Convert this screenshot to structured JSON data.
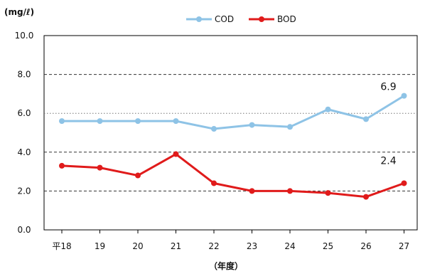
{
  "chart_data": {
    "type": "line",
    "categories": [
      "平18",
      "19",
      "20",
      "21",
      "22",
      "23",
      "24",
      "25",
      "26",
      "27"
    ],
    "ylabel": "(mg/ℓ)",
    "xlabel": "（年度）",
    "ylim": [
      0,
      10
    ],
    "yticks": [
      "0.0",
      "2.0",
      "4.0",
      "6.0",
      "8.0",
      "10.0"
    ],
    "grid": "dashed horizontal at 2.0, 4.0, 8.0; dotted at 6.0",
    "legend_position": "top-center",
    "series": [
      {
        "name": "COD",
        "color": "#8ec3e6",
        "values": [
          5.6,
          5.6,
          5.6,
          5.6,
          5.2,
          5.4,
          5.3,
          6.2,
          5.7,
          6.9
        ]
      },
      {
        "name": "BOD",
        "color": "#e01b1b",
        "values": [
          3.3,
          3.2,
          2.8,
          3.9,
          2.4,
          2.0,
          2.0,
          1.9,
          1.7,
          2.4
        ]
      }
    ],
    "annotations": [
      {
        "text": "6.9",
        "series": "COD",
        "x": "27"
      },
      {
        "text": "2.4",
        "series": "BOD",
        "x": "27"
      }
    ]
  }
}
